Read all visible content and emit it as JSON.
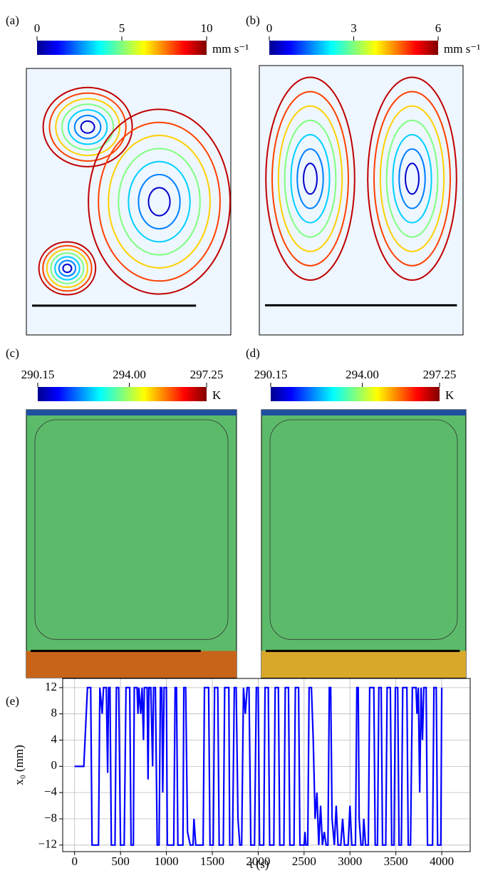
{
  "panels": [
    {
      "label": "(a)",
      "colorbar": {
        "ticks": [
          0,
          5,
          10
        ],
        "unit": "mm s⁻¹"
      },
      "field": "velocity"
    },
    {
      "label": "(b)",
      "colorbar": {
        "ticks": [
          0,
          3,
          6
        ],
        "unit": "mm s⁻¹"
      },
      "field": "velocity"
    },
    {
      "label": "(c)",
      "colorbar": {
        "ticks": [
          290.15,
          {
            "value": 294,
            "label": "294.00"
          },
          297.25
        ],
        "unit": "K"
      },
      "field": "temperature"
    },
    {
      "label": "(d)",
      "colorbar": {
        "ticks": [
          290.15,
          {
            "value": 294,
            "label": "294.00"
          },
          297.25
        ],
        "unit": "K"
      },
      "field": "temperature"
    }
  ],
  "chart_data": {
    "type": "line",
    "panel_label": "(e)",
    "xlabel": "t (s)",
    "ylabel": "x₀ (mm)",
    "color": "#0000ff",
    "grid": true,
    "xlim": [
      -130,
      4310
    ],
    "ylim": [
      -13,
      13.4
    ],
    "xticks": [
      0,
      500,
      1000,
      1500,
      2000,
      2500,
      3000,
      3500,
      4000
    ],
    "yticks": [
      12,
      8,
      4,
      0,
      {
        "value": -4,
        "label": "−4"
      },
      {
        "value": -8,
        "label": "−8"
      },
      {
        "value": -12,
        "label": "−12"
      }
    ],
    "x": [
      0,
      100,
      140,
      175,
      190,
      260,
      275,
      300,
      315,
      345,
      360,
      370,
      385,
      400,
      440,
      455,
      480,
      500,
      540,
      560,
      600,
      615,
      640,
      650,
      680,
      690,
      700,
      720,
      735,
      750,
      760,
      790,
      800,
      810,
      830,
      850,
      860,
      880,
      900,
      920,
      935,
      950,
      960,
      975,
      1000,
      1010,
      1080,
      1095,
      1110,
      1125,
      1180,
      1190,
      1210,
      1230,
      1260,
      1290,
      1300,
      1320,
      1400,
      1415,
      1460,
      1475,
      1510,
      1525,
      1560,
      1575,
      1620,
      1635,
      1680,
      1690,
      1720,
      1740,
      1760,
      1780,
      1800,
      1820,
      1840,
      1860,
      1880,
      1900,
      1920,
      1960,
      1980,
      2000,
      2015,
      2060,
      2075,
      2110,
      2125,
      2170,
      2185,
      2220,
      2235,
      2280,
      2295,
      2330,
      2345,
      2390,
      2405,
      2440,
      2455,
      2500,
      2510,
      2520,
      2540,
      2555,
      2580,
      2600,
      2620,
      2640,
      2660,
      2680,
      2700,
      2720,
      2740,
      2760,
      2775,
      2790,
      2805,
      2830,
      2850,
      2870,
      2900,
      2920,
      2940,
      2980,
      3000,
      3020,
      3060,
      3075,
      3090,
      3100,
      3120,
      3140,
      3150,
      3170,
      3200,
      3215,
      3260,
      3275,
      3300,
      3315,
      3340,
      3355,
      3390,
      3405,
      3440,
      3455,
      3480,
      3495,
      3520,
      3535,
      3560,
      3575,
      3620,
      3635,
      3660,
      3680,
      3720,
      3730,
      3745,
      3760,
      3775,
      3790,
      3805,
      3830,
      3845,
      3900,
      3915,
      3940,
      3955,
      3990,
      4000
    ],
    "values": [
      0,
      0,
      12,
      12,
      -12,
      -12,
      12,
      8,
      12,
      12,
      -1,
      12,
      12,
      -12,
      -12,
      12,
      12,
      -12,
      -12,
      12,
      12,
      -12,
      -12,
      12,
      12,
      8,
      12,
      8,
      12,
      4,
      12,
      12,
      -2,
      12,
      12,
      0,
      12,
      12,
      -12,
      -12,
      12,
      12,
      -4,
      12,
      12,
      -12,
      -12,
      12,
      12,
      -12,
      -12,
      12,
      12,
      -10,
      -12,
      -12,
      -8,
      -12,
      -12,
      12,
      12,
      -12,
      -12,
      12,
      12,
      -12,
      -12,
      12,
      12,
      -12,
      -12,
      12,
      12,
      -8,
      -12,
      -12,
      12,
      8,
      12,
      12,
      -12,
      -12,
      12,
      12,
      -12,
      -12,
      12,
      12,
      -12,
      -12,
      12,
      12,
      -12,
      -12,
      12,
      12,
      -12,
      -12,
      12,
      12,
      -12,
      -12,
      -10,
      -12,
      -12,
      12,
      12,
      4,
      -8,
      -4,
      -12,
      -6,
      -12,
      -10,
      -12,
      -12,
      12,
      12,
      -8,
      -12,
      -6,
      -12,
      -12,
      -8,
      -12,
      -12,
      -6,
      -12,
      -12,
      12,
      12,
      -8,
      -12,
      -12,
      -8,
      -12,
      -12,
      12,
      12,
      -12,
      -12,
      12,
      12,
      -12,
      -12,
      12,
      12,
      -12,
      -12,
      12,
      12,
      -12,
      -12,
      12,
      12,
      -12,
      -12,
      12,
      12,
      8,
      12,
      -4,
      12,
      4,
      12,
      12,
      -12,
      -12,
      12,
      12,
      -12,
      -12,
      12
    ]
  }
}
